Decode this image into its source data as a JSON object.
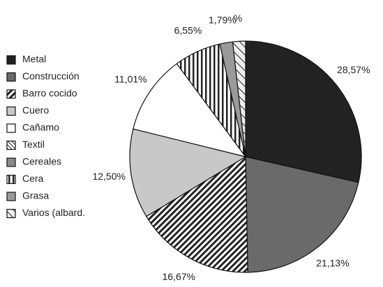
{
  "chart_data": {
    "type": "pie",
    "categories": [
      "Metal",
      "Construcción",
      "Barro cocido",
      "Cuero",
      "Cañamo",
      "Textil",
      "Cereales",
      "Cera",
      "Grasa",
      "Varios (albard."
    ],
    "values": [
      28.57,
      21.13,
      16.67,
      12.5,
      11.01,
      0,
      0,
      6.55,
      1.79,
      1.78
    ],
    "value_labels": [
      "28,57%",
      "21,13%",
      "16,67%",
      "12,50%",
      "11,01%",
      null,
      null,
      "6,55%",
      "1,79%",
      "%"
    ],
    "colors": [
      "#222222",
      "#6a6a6a",
      "#222222",
      "#c8c8c8",
      "#ffffff",
      "#222222",
      "#8a8a8a",
      "#222222",
      "#9a9a9a",
      "#dddddd"
    ],
    "fills": [
      "solid",
      "solid",
      "diagonal",
      "solid",
      "solid",
      "dotted",
      "solid",
      "vertical",
      "solid",
      "diagonal-light"
    ],
    "legend": "left"
  }
}
